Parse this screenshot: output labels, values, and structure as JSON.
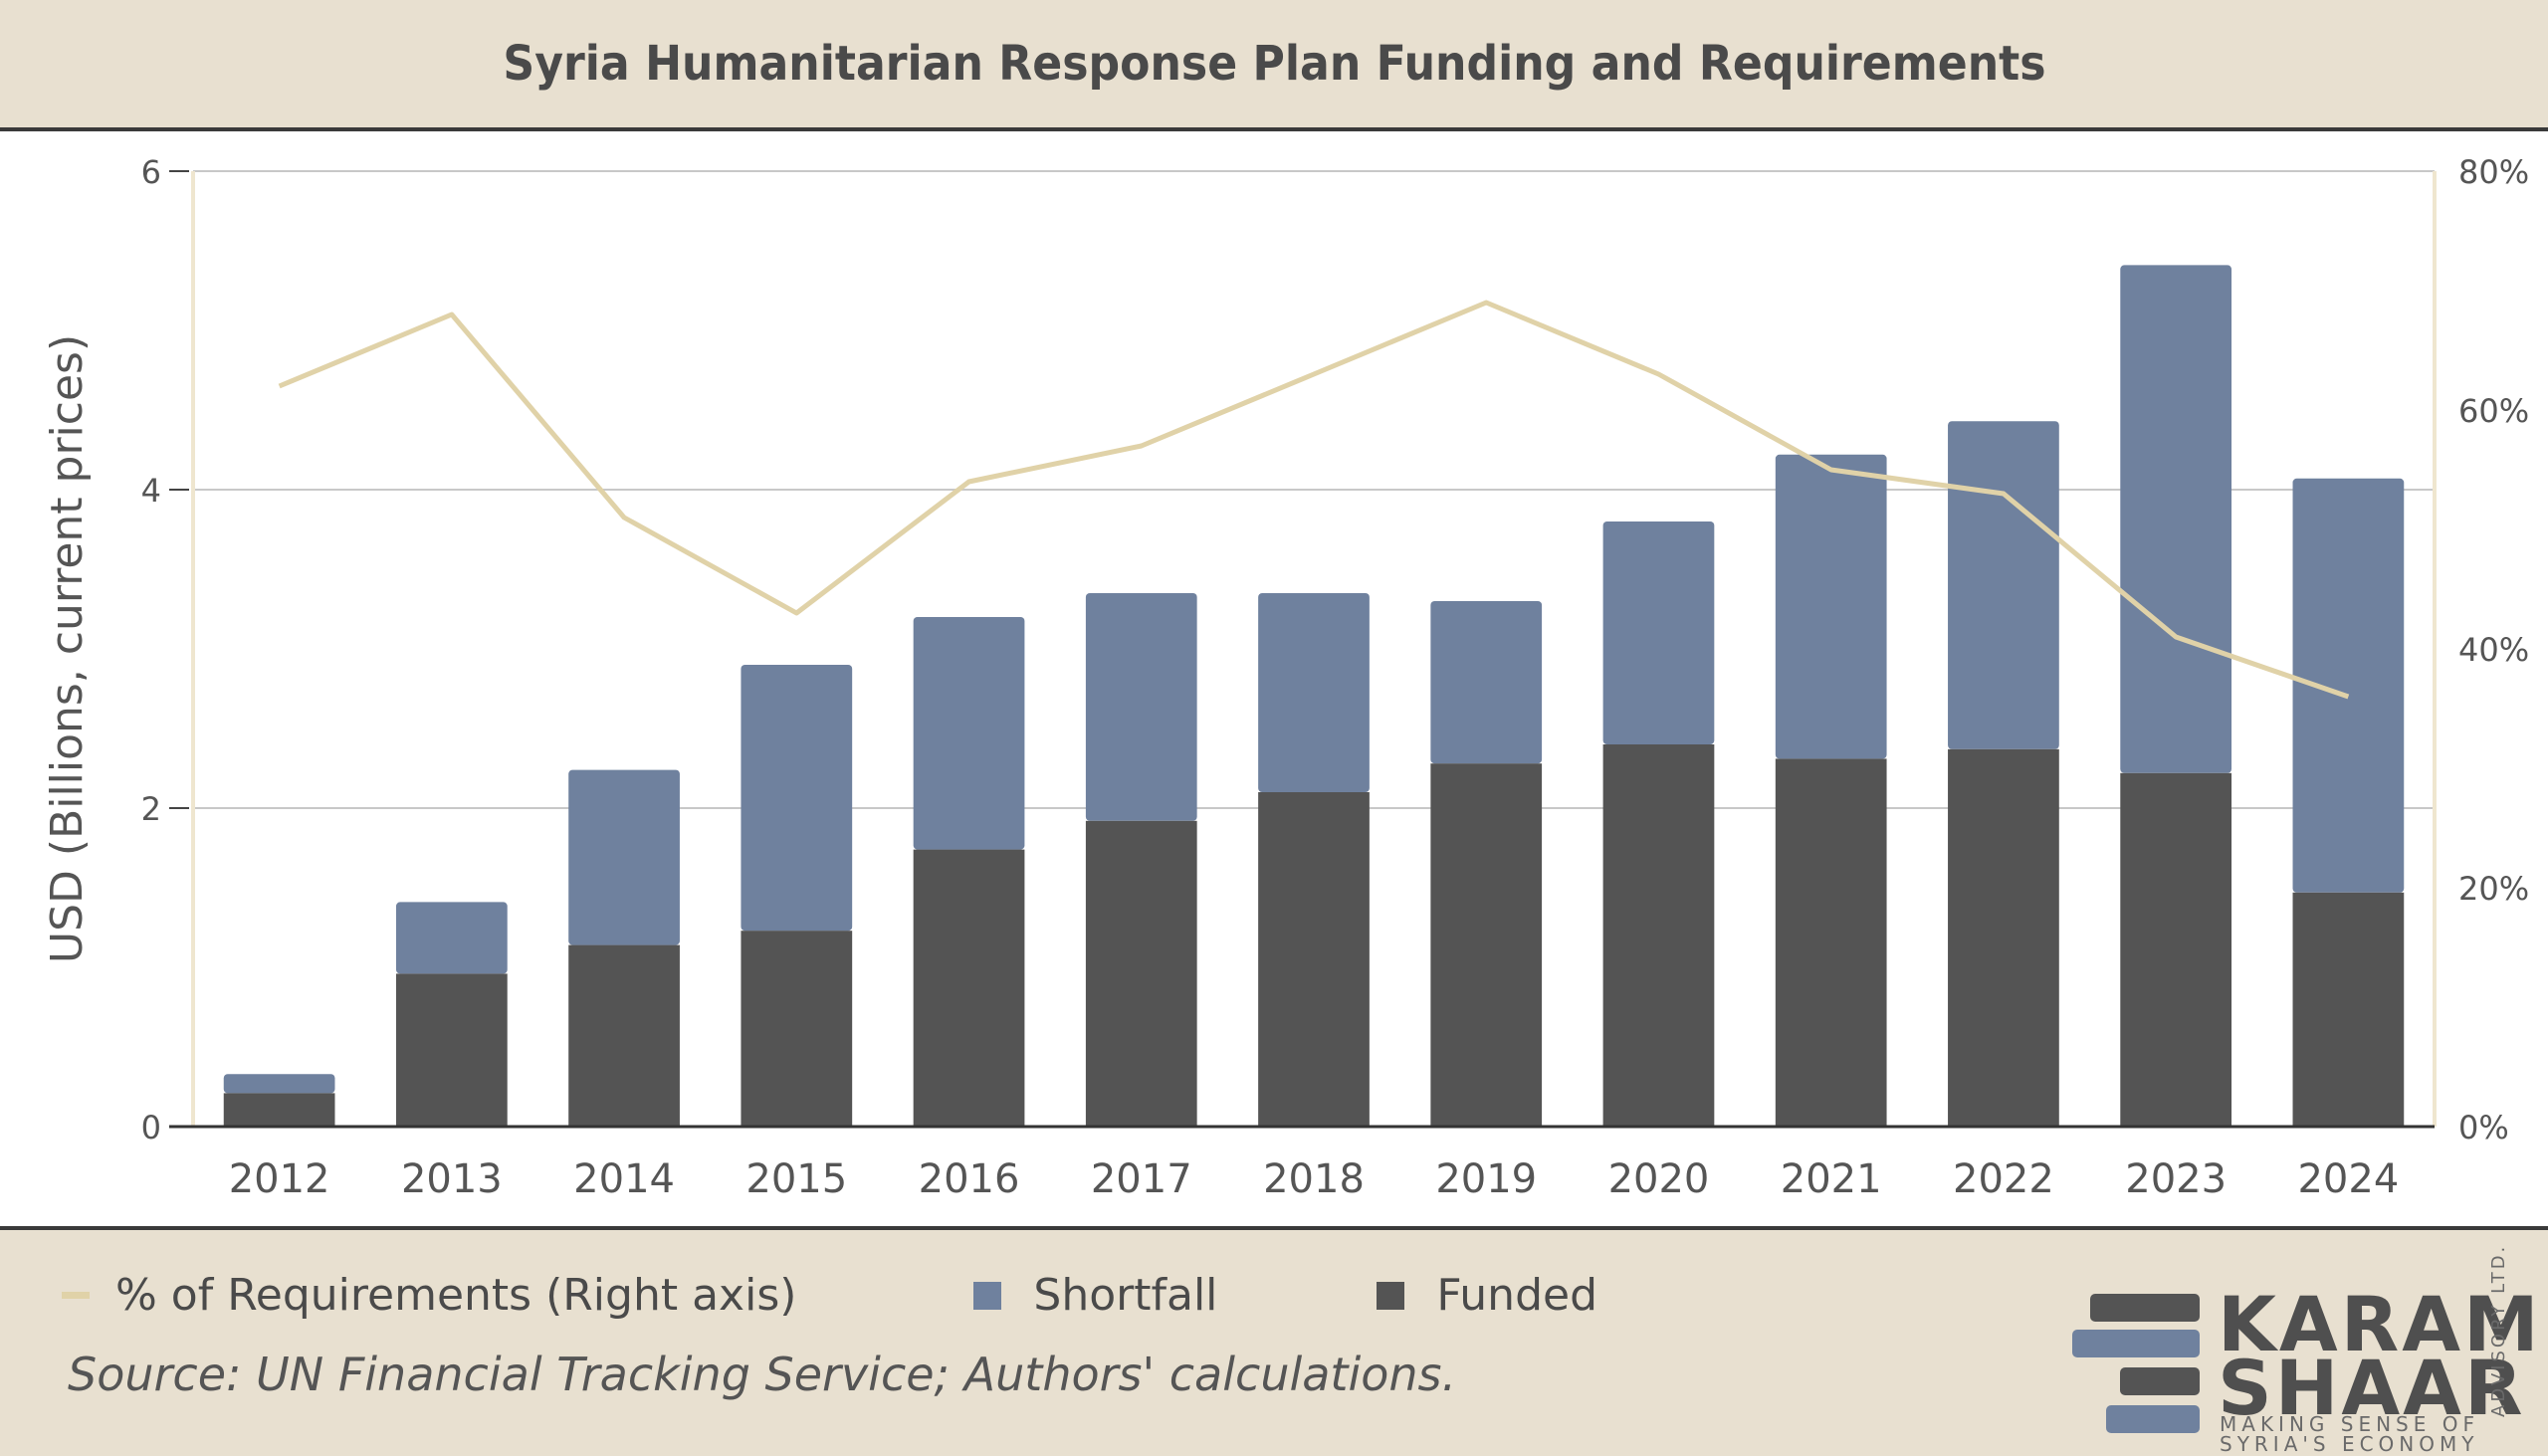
{
  "header": {
    "title": "Syria Humanitarian Response Plan Funding and Requirements"
  },
  "chart_data": {
    "type": "bar",
    "stacked": true,
    "categories": [
      "2012",
      "2013",
      "2014",
      "2015",
      "2016",
      "2017",
      "2018",
      "2019",
      "2020",
      "2021",
      "2022",
      "2023",
      "2024"
    ],
    "series": [
      {
        "name": "Funded",
        "type": "bar",
        "axis": "left",
        "color": "#545454",
        "values": [
          0.21,
          0.96,
          1.14,
          1.23,
          1.74,
          1.92,
          2.1,
          2.28,
          2.4,
          2.31,
          2.37,
          2.22,
          1.47
        ]
      },
      {
        "name": "Shortfall",
        "type": "bar",
        "axis": "left",
        "color": "#6f819e",
        "values": [
          0.12,
          0.45,
          1.1,
          1.67,
          1.46,
          1.43,
          1.25,
          1.02,
          1.4,
          1.91,
          2.06,
          3.19,
          2.6
        ]
      },
      {
        "name": "% of Requirements (Right axis)",
        "type": "line",
        "axis": "right",
        "color": "#e0d2a8",
        "values": [
          62,
          68,
          51,
          43,
          54,
          57,
          63,
          69,
          63,
          55,
          53,
          41,
          36
        ]
      }
    ],
    "ylabel": "USD (Billions, current prices)",
    "ylim": [
      0,
      6
    ],
    "yticks": [
      "0",
      "2",
      "4",
      "6"
    ],
    "y2lim": [
      0,
      80
    ],
    "y2ticks": [
      "0%",
      "20%",
      "40%",
      "60%",
      "80%"
    ],
    "grid": true,
    "legend_position": "bottom"
  },
  "legend": [
    {
      "label": "% of Requirements (Right axis)",
      "kind": "line",
      "color": "#e0d2a8"
    },
    {
      "label": "Shortfall",
      "kind": "box",
      "color": "#6f819e"
    },
    {
      "label": "Funded",
      "kind": "box",
      "color": "#545454"
    }
  ],
  "footer": {
    "source": "Source: UN Financial Tracking Service; Authors' calculations."
  },
  "logo": {
    "line1": "KARAM",
    "line2": "SHAAR",
    "tag1": "MAKING SENSE OF",
    "tag2": "SYRIA'S ECONOMY",
    "side": "ADVISORY LTD."
  }
}
